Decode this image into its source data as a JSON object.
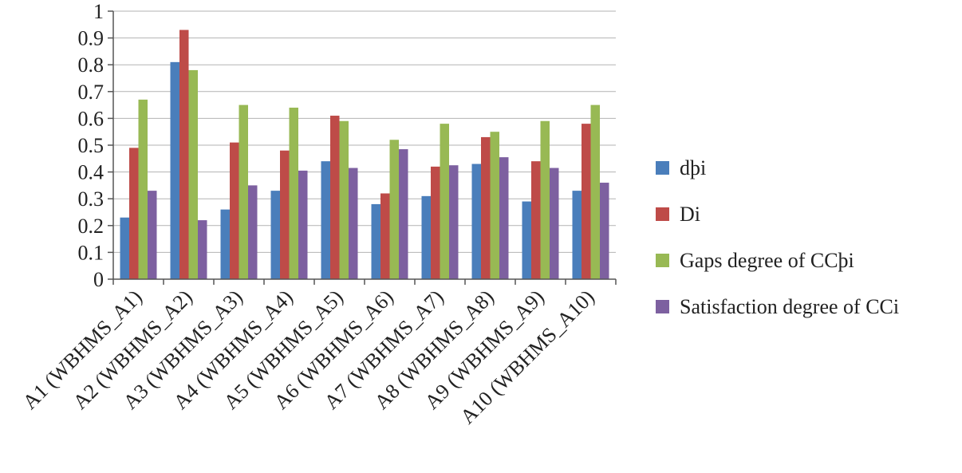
{
  "chart_data": {
    "type": "bar",
    "title": "",
    "xlabel": "",
    "ylabel": "",
    "ylim": [
      0,
      1
    ],
    "yticks": [
      "0",
      "0.1",
      "0.2",
      "0.3",
      "0.4",
      "0.5",
      "0.6",
      "0.7",
      "0.8",
      "0.9",
      "1"
    ],
    "grid": true,
    "legend_position": "right",
    "categories": [
      "A1 (WBHMS_A1)",
      "A2 (WBHMS_A2)",
      "A3 (WBHMS_A3)",
      "A4 (WBHMS_A4)",
      "A5 (WBHMS_A5)",
      "A6 (WBHMS_A6)",
      "A7 (WBHMS_A7)",
      "A8 (WBHMS_A8)",
      "A9 (WBHMS_A9)",
      "A10 (WBHMS_A10)"
    ],
    "series": [
      {
        "name": "dþi",
        "color": "#4a7ebb",
        "values": [
          0.23,
          0.81,
          0.26,
          0.33,
          0.44,
          0.28,
          0.31,
          0.43,
          0.29,
          0.33
        ]
      },
      {
        "name": "Di",
        "color": "#be4b48",
        "values": [
          0.49,
          0.93,
          0.51,
          0.48,
          0.61,
          0.32,
          0.42,
          0.53,
          0.44,
          0.58
        ]
      },
      {
        "name": "Gaps degree of CCþi",
        "color": "#98b954",
        "values": [
          0.67,
          0.78,
          0.65,
          0.64,
          0.59,
          0.52,
          0.58,
          0.55,
          0.59,
          0.65
        ]
      },
      {
        "name": "Satisfaction degree of CCi",
        "color": "#7d60a0",
        "values": [
          0.33,
          0.22,
          0.35,
          0.405,
          0.415,
          0.485,
          0.425,
          0.455,
          0.415,
          0.36
        ]
      }
    ]
  }
}
